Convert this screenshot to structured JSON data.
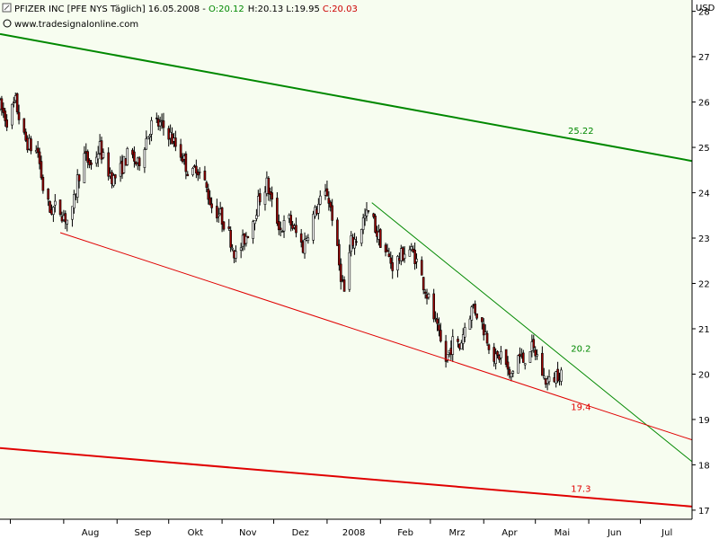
{
  "chart_data": {
    "type": "candlestick",
    "symbol_line": "PFIZER INC [PFE NYS  Täglich] 16.05.2008 - ",
    "ohlc_labels": {
      "open": "O:20.12",
      "high": "H:20.13",
      "low": "L:19.95",
      "close": "C:20.03"
    },
    "source": "www.tradesignalonline.com",
    "unit": "USD",
    "ylim": [
      16.8,
      28.25
    ],
    "y_ticks": [
      "17",
      "18",
      "19",
      "20",
      "21",
      "22",
      "23",
      "24",
      "25",
      "26",
      "27",
      "28"
    ],
    "x_ticks": [
      "Aug",
      "Sep",
      "Okt",
      "Nov",
      "Dez",
      "2008",
      "Feb",
      "Mrz",
      "Apr",
      "Mai",
      "Jun",
      "Jul"
    ],
    "x_range": [
      "2007-06-25",
      "2008-07-31"
    ],
    "colors": {
      "background": "#f7fdf0",
      "up": "#ffffff",
      "down": "#990000",
      "green_line": "#008800",
      "red_line": "#e00000"
    },
    "trendlines": [
      {
        "label": "25.22",
        "color": "green",
        "from": [
          "2007-06-25",
          27.5
        ],
        "to": [
          "2008-07-31",
          24.7
        ]
      },
      {
        "label": "17.3",
        "color": "red",
        "from": [
          "2007-06-25",
          18.37
        ],
        "to": [
          "2008-07-31",
          17.08
        ]
      },
      {
        "label": "20.2",
        "color": "green",
        "from": [
          "2008-01-27",
          23.78
        ],
        "to": [
          "2008-07-31",
          18.07
        ]
      },
      {
        "label": "19.4",
        "color": "red",
        "from": [
          "2007-07-30",
          23.12
        ],
        "to": [
          "2008-07-31",
          18.55
        ]
      }
    ],
    "price_path": [
      [
        "2007-06-25",
        25.9
      ],
      [
        "2007-06-29",
        25.6
      ],
      [
        "2007-07-04",
        26.0
      ],
      [
        "2007-07-09",
        25.2
      ],
      [
        "2007-07-13",
        25.0
      ],
      [
        "2007-07-17",
        24.9
      ],
      [
        "2007-07-20",
        24.1
      ],
      [
        "2007-07-24",
        23.6
      ],
      [
        "2007-07-28",
        23.7
      ],
      [
        "2007-08-01",
        23.5
      ],
      [
        "2007-08-05",
        23.3
      ],
      [
        "2007-08-09",
        24.3
      ],
      [
        "2007-08-13",
        24.8
      ],
      [
        "2007-08-17",
        24.6
      ],
      [
        "2007-08-22",
        25.0
      ],
      [
        "2007-08-25",
        24.6
      ],
      [
        "2007-08-30",
        24.3
      ],
      [
        "2007-09-03",
        24.5
      ],
      [
        "2007-09-08",
        24.9
      ],
      [
        "2007-09-13",
        24.6
      ],
      [
        "2007-09-17",
        25.1
      ],
      [
        "2007-09-22",
        25.6
      ],
      [
        "2007-09-25",
        25.5
      ],
      [
        "2007-09-30",
        25.4
      ],
      [
        "2007-10-04",
        25.1
      ],
      [
        "2007-10-09",
        24.8
      ],
      [
        "2007-10-14",
        24.3
      ],
      [
        "2007-10-17",
        24.6
      ],
      [
        "2007-10-22",
        24.2
      ],
      [
        "2007-10-26",
        23.7
      ],
      [
        "2007-10-31",
        23.5
      ],
      [
        "2007-11-04",
        23.2
      ],
      [
        "2007-11-09",
        22.6
      ],
      [
        "2007-11-13",
        22.9
      ],
      [
        "2007-11-18",
        23.3
      ],
      [
        "2007-11-23",
        23.9
      ],
      [
        "2007-11-27",
        24.2
      ],
      [
        "2007-12-01",
        23.6
      ],
      [
        "2007-12-05",
        23.2
      ],
      [
        "2007-12-10",
        23.4
      ],
      [
        "2007-12-14",
        23.1
      ],
      [
        "2007-12-18",
        22.8
      ],
      [
        "2007-12-23",
        23.4
      ],
      [
        "2007-12-28",
        23.8
      ],
      [
        "2008-01-01",
        24.0
      ],
      [
        "2008-01-04",
        23.5
      ],
      [
        "2008-01-08",
        22.4
      ],
      [
        "2008-01-11",
        21.8
      ],
      [
        "2008-01-15",
        22.9
      ],
      [
        "2008-01-19",
        23.0
      ],
      [
        "2008-01-22",
        23.4
      ],
      [
        "2008-01-26",
        23.6
      ],
      [
        "2008-01-30",
        23.1
      ],
      [
        "2008-02-04",
        22.7
      ],
      [
        "2008-02-08",
        22.4
      ],
      [
        "2008-02-13",
        22.6
      ],
      [
        "2008-02-17",
        22.8
      ],
      [
        "2008-02-21",
        22.6
      ],
      [
        "2008-02-26",
        22.0
      ],
      [
        "2008-03-02",
        21.4
      ],
      [
        "2008-03-06",
        20.8
      ],
      [
        "2008-03-10",
        20.3
      ],
      [
        "2008-03-14",
        20.7
      ],
      [
        "2008-03-18",
        20.6
      ],
      [
        "2008-03-22",
        21.2
      ],
      [
        "2008-03-26",
        21.5
      ],
      [
        "2008-03-31",
        21.1
      ],
      [
        "2008-04-04",
        20.7
      ],
      [
        "2008-04-08",
        20.3
      ],
      [
        "2008-04-12",
        20.5
      ],
      [
        "2008-04-16",
        19.9
      ],
      [
        "2008-04-21",
        20.4
      ],
      [
        "2008-04-24",
        20.3
      ],
      [
        "2008-04-28",
        20.6
      ],
      [
        "2008-05-02",
        20.4
      ],
      [
        "2008-05-06",
        19.9
      ],
      [
        "2008-05-10",
        19.8
      ],
      [
        "2008-05-13",
        20.0
      ],
      [
        "2008-05-16",
        20.05
      ]
    ]
  }
}
